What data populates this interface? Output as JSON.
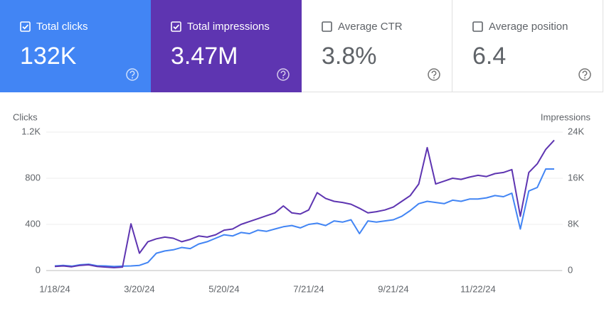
{
  "cards": [
    {
      "label": "Total clicks",
      "value": "132K",
      "checked": true,
      "color": "#4285f4"
    },
    {
      "label": "Total impressions",
      "value": "3.47M",
      "checked": true,
      "color": "#5e35b1"
    },
    {
      "label": "Average CTR",
      "value": "3.8%",
      "checked": false,
      "color": "#ffffff"
    },
    {
      "label": "Average position",
      "value": "6.4",
      "checked": false,
      "color": "#ffffff"
    }
  ],
  "chart_data": {
    "type": "line",
    "ylabel": "Clicks",
    "y2label": "Impressions",
    "categories": [
      "1/18/24",
      null,
      null,
      null,
      null,
      null,
      null,
      null,
      null,
      null,
      "3/20/24",
      null,
      null,
      null,
      null,
      null,
      null,
      null,
      null,
      null,
      "5/20/24",
      null,
      null,
      null,
      null,
      null,
      null,
      null,
      null,
      null,
      "7/21/24",
      null,
      null,
      null,
      null,
      null,
      null,
      null,
      null,
      null,
      "9/21/24",
      null,
      null,
      null,
      null,
      null,
      null,
      null,
      null,
      null,
      "11/22/24",
      null,
      null,
      null,
      null,
      null,
      null,
      null,
      null,
      null
    ],
    "series": [
      {
        "name": "Clicks",
        "color": "#4285f4",
        "values": [
          40,
          45,
          38,
          50,
          55,
          42,
          40,
          35,
          38,
          40,
          45,
          70,
          150,
          170,
          180,
          200,
          190,
          230,
          250,
          280,
          310,
          300,
          330,
          320,
          350,
          340,
          360,
          380,
          390,
          370,
          400,
          410,
          390,
          430,
          420,
          440,
          320,
          430,
          420,
          430,
          440,
          470,
          520,
          580,
          600,
          590,
          580,
          610,
          600,
          620,
          620,
          630,
          650,
          640,
          670,
          360,
          690,
          720,
          880,
          880
        ]
      },
      {
        "name": "Impressions",
        "color": "#5e35b1",
        "axis": "y2",
        "values": [
          700,
          800,
          650,
          900,
          1000,
          700,
          600,
          500,
          600,
          8100,
          3000,
          5000,
          5500,
          5800,
          5600,
          5000,
          5400,
          6000,
          5800,
          6200,
          7000,
          7200,
          8000,
          8500,
          9000,
          9500,
          10000,
          11200,
          10000,
          9800,
          10500,
          13500,
          12500,
          12000,
          11800,
          11500,
          10800,
          10000,
          10200,
          10500,
          11000,
          12000,
          13000,
          15000,
          21300,
          15000,
          15500,
          16000,
          15800,
          16200,
          16500,
          16300,
          16800,
          17000,
          17500,
          9400,
          17000,
          18500,
          21000,
          22600
        ]
      }
    ],
    "ylim": [
      0,
      1200
    ],
    "yticks": [
      0,
      400,
      800,
      {
        "value": 1200,
        "label": "1.2K"
      }
    ],
    "y2lim": [
      0,
      24000
    ],
    "y2ticks": [
      0,
      {
        "value": 8000,
        "label": "8K"
      },
      {
        "value": 16000,
        "label": "16K"
      },
      {
        "value": 24000,
        "label": "24K"
      }
    ],
    "grid": true
  }
}
